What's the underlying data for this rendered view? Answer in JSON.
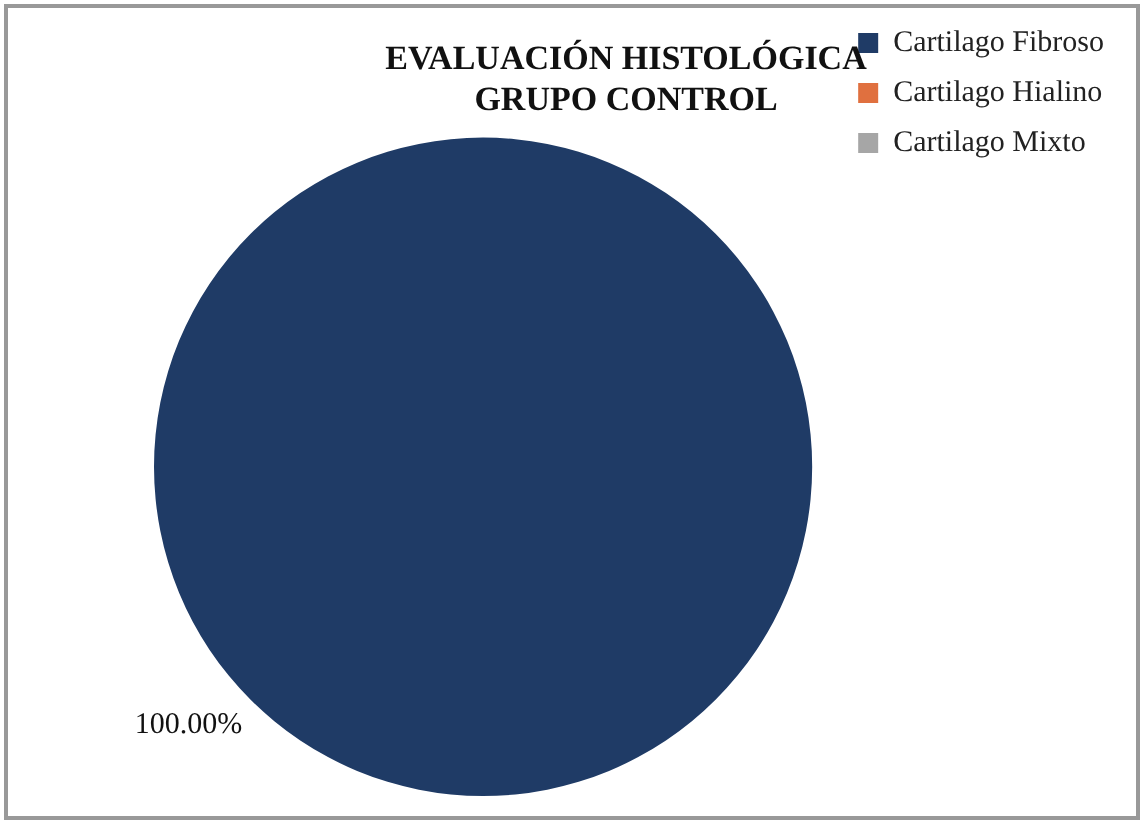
{
  "chart_data": {
    "type": "pie",
    "title": "EVALUACIÓN HISTOLÓGICA\nGRUPO CONTROL",
    "categories": [
      "Cartilago Fibroso",
      "Cartilago Hialino",
      "Cartilago Mixto"
    ],
    "values": [
      100,
      0,
      0
    ],
    "colors": [
      "#1f3b66",
      "#e0703f",
      "#a6a6a6"
    ],
    "value_labels": [
      "100.00%",
      null,
      null
    ],
    "legend": "top right"
  }
}
